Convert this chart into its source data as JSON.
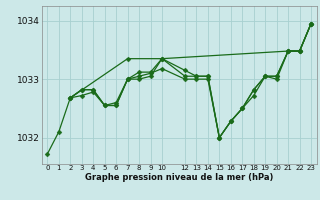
{
  "title": "Graphe pression niveau de la mer (hPa)",
  "bg_color": "#cce8e8",
  "grid_color": "#a8d0d0",
  "line_color": "#1a6b1a",
  "ylim": [
    1031.55,
    1034.25
  ],
  "xlim": [
    -0.5,
    23.5
  ],
  "yticks": [
    1032,
    1033,
    1034
  ],
  "ytick_labels": [
    "1032",
    "1033",
    "1034"
  ],
  "xtick_positions": [
    0,
    1,
    2,
    3,
    4,
    5,
    6,
    7,
    8,
    9,
    10,
    12,
    13,
    14,
    15,
    16,
    17,
    18,
    19,
    20,
    21,
    22,
    23
  ],
  "xtick_labels": [
    "0",
    "1",
    "2",
    "3",
    "4",
    "5",
    "6",
    "7",
    "8",
    "9",
    "10",
    "12",
    "13",
    "14",
    "15",
    "16",
    "17",
    "18",
    "19",
    "20",
    "21",
    "22",
    "23"
  ],
  "series": [
    {
      "x": [
        0,
        1,
        2,
        3,
        4,
        5,
        6,
        7,
        8,
        9,
        10,
        12,
        13,
        14,
        15,
        16,
        17,
        18,
        19,
        20,
        21,
        22,
        23
      ],
      "y": [
        1031.72,
        1032.1,
        1032.68,
        1032.72,
        1032.78,
        1032.55,
        1032.6,
        1033.0,
        1033.05,
        1033.1,
        1033.18,
        1033.0,
        1033.0,
        1033.0,
        1032.0,
        1032.28,
        1032.5,
        1032.72,
        1033.05,
        1033.0,
        1033.48,
        1033.48,
        1033.95
      ]
    },
    {
      "x": [
        2,
        3,
        4,
        5,
        6,
        7,
        8,
        9,
        10,
        12,
        13,
        14,
        15,
        16,
        17,
        18,
        19,
        20,
        21,
        22,
        23
      ],
      "y": [
        1032.68,
        1032.82,
        1032.82,
        1032.55,
        1032.55,
        1033.0,
        1033.0,
        1033.05,
        1033.35,
        1033.15,
        1033.05,
        1033.05,
        1032.0,
        1032.28,
        1032.5,
        1032.82,
        1033.05,
        1033.05,
        1033.48,
        1033.48,
        1033.95
      ]
    },
    {
      "x": [
        2,
        3,
        4,
        5,
        6,
        7,
        8,
        9,
        10,
        12,
        13,
        14,
        15,
        16,
        17,
        18,
        19,
        20,
        21,
        22,
        23
      ],
      "y": [
        1032.68,
        1032.82,
        1032.82,
        1032.55,
        1032.55,
        1033.0,
        1033.12,
        1033.12,
        1033.35,
        1033.05,
        1033.05,
        1033.05,
        1032.0,
        1032.28,
        1032.5,
        1032.82,
        1033.05,
        1033.05,
        1033.48,
        1033.48,
        1033.95
      ]
    },
    {
      "x": [
        2,
        7,
        10,
        21,
        22,
        23
      ],
      "y": [
        1032.68,
        1033.35,
        1033.35,
        1033.48,
        1033.48,
        1033.95
      ]
    }
  ]
}
